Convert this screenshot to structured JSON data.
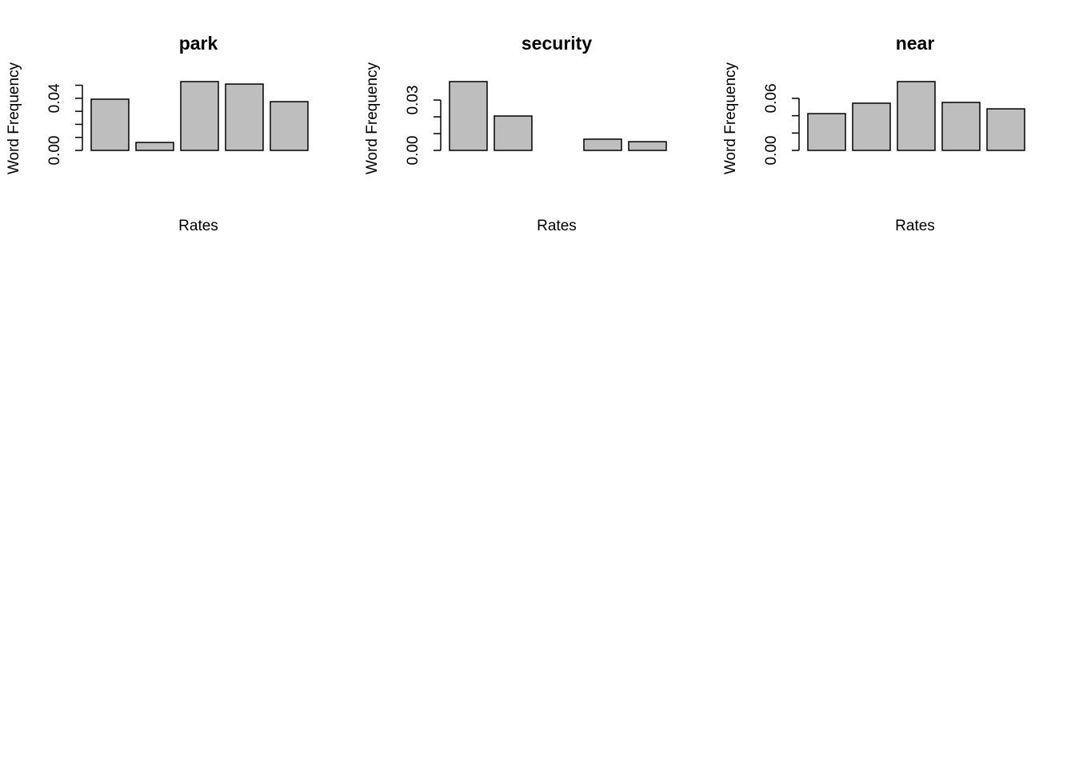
{
  "chart_data": [
    {
      "type": "bar",
      "title": "park",
      "xlabel": "Rates",
      "ylabel": "Word Frequency",
      "color": "#bebebe",
      "values": [
        0.0393,
        0.0061,
        0.0528,
        0.0509,
        0.0374
      ],
      "ylim": [
        0,
        0.0528
      ],
      "yticks": [
        {
          "value": 0,
          "label": "0.00"
        },
        {
          "value": 0.01
        },
        {
          "value": 0.02
        },
        {
          "value": 0.03
        },
        {
          "value": 0.04,
          "label": "0.04"
        },
        {
          "value": 0.05
        }
      ]
    },
    {
      "type": "bar",
      "title": "security",
      "xlabel": "Rates",
      "ylabel": "Word Frequency",
      "color": "#bebebe",
      "values": [
        0.041,
        0.0205,
        0,
        0.0067,
        0.0052
      ],
      "ylim": [
        0,
        0.041
      ],
      "yticks": [
        {
          "value": 0,
          "label": "0.00"
        },
        {
          "value": 0.01
        },
        {
          "value": 0.02
        },
        {
          "value": 0.03,
          "label": "0.03"
        }
      ]
    },
    {
      "type": "bar",
      "title": "near",
      "xlabel": "Rates",
      "ylabel": "Word Frequency",
      "color": "#bebebe",
      "values": [
        0.0424,
        0.0544,
        0.0793,
        0.0553,
        0.0479
      ],
      "ylim": [
        0,
        0.0793
      ],
      "yticks": [
        {
          "value": 0,
          "label": "0.00"
        },
        {
          "value": 0.02
        },
        {
          "value": 0.04
        },
        {
          "value": 0.06,
          "label": "0.06"
        }
      ]
    }
  ]
}
